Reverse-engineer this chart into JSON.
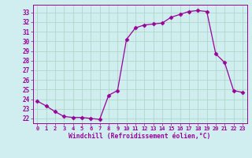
{
  "x": [
    0,
    1,
    2,
    3,
    4,
    5,
    6,
    7,
    8,
    9,
    10,
    11,
    12,
    13,
    14,
    15,
    16,
    17,
    18,
    19,
    20,
    21,
    22,
    23
  ],
  "y": [
    23.8,
    23.3,
    22.7,
    22.2,
    22.1,
    22.1,
    22.0,
    21.9,
    24.4,
    24.9,
    30.2,
    31.4,
    31.7,
    31.8,
    31.9,
    32.5,
    32.8,
    33.1,
    33.2,
    33.1,
    28.7,
    27.8,
    24.9,
    24.7
  ],
  "line_color": "#990099",
  "marker": "D",
  "marker_size": 2.5,
  "xlabel": "Windchill (Refroidissement éolien,°C)",
  "ylim": [
    21.5,
    33.8
  ],
  "yticks": [
    22,
    23,
    24,
    25,
    26,
    27,
    28,
    29,
    30,
    31,
    32,
    33
  ],
  "xticks": [
    0,
    1,
    2,
    3,
    4,
    5,
    6,
    7,
    8,
    9,
    10,
    11,
    12,
    13,
    14,
    15,
    16,
    17,
    18,
    19,
    20,
    21,
    22,
    23
  ],
  "bg_color": "#d0eef0",
  "grid_color": "#b0d8c8",
  "label_color": "#990099"
}
